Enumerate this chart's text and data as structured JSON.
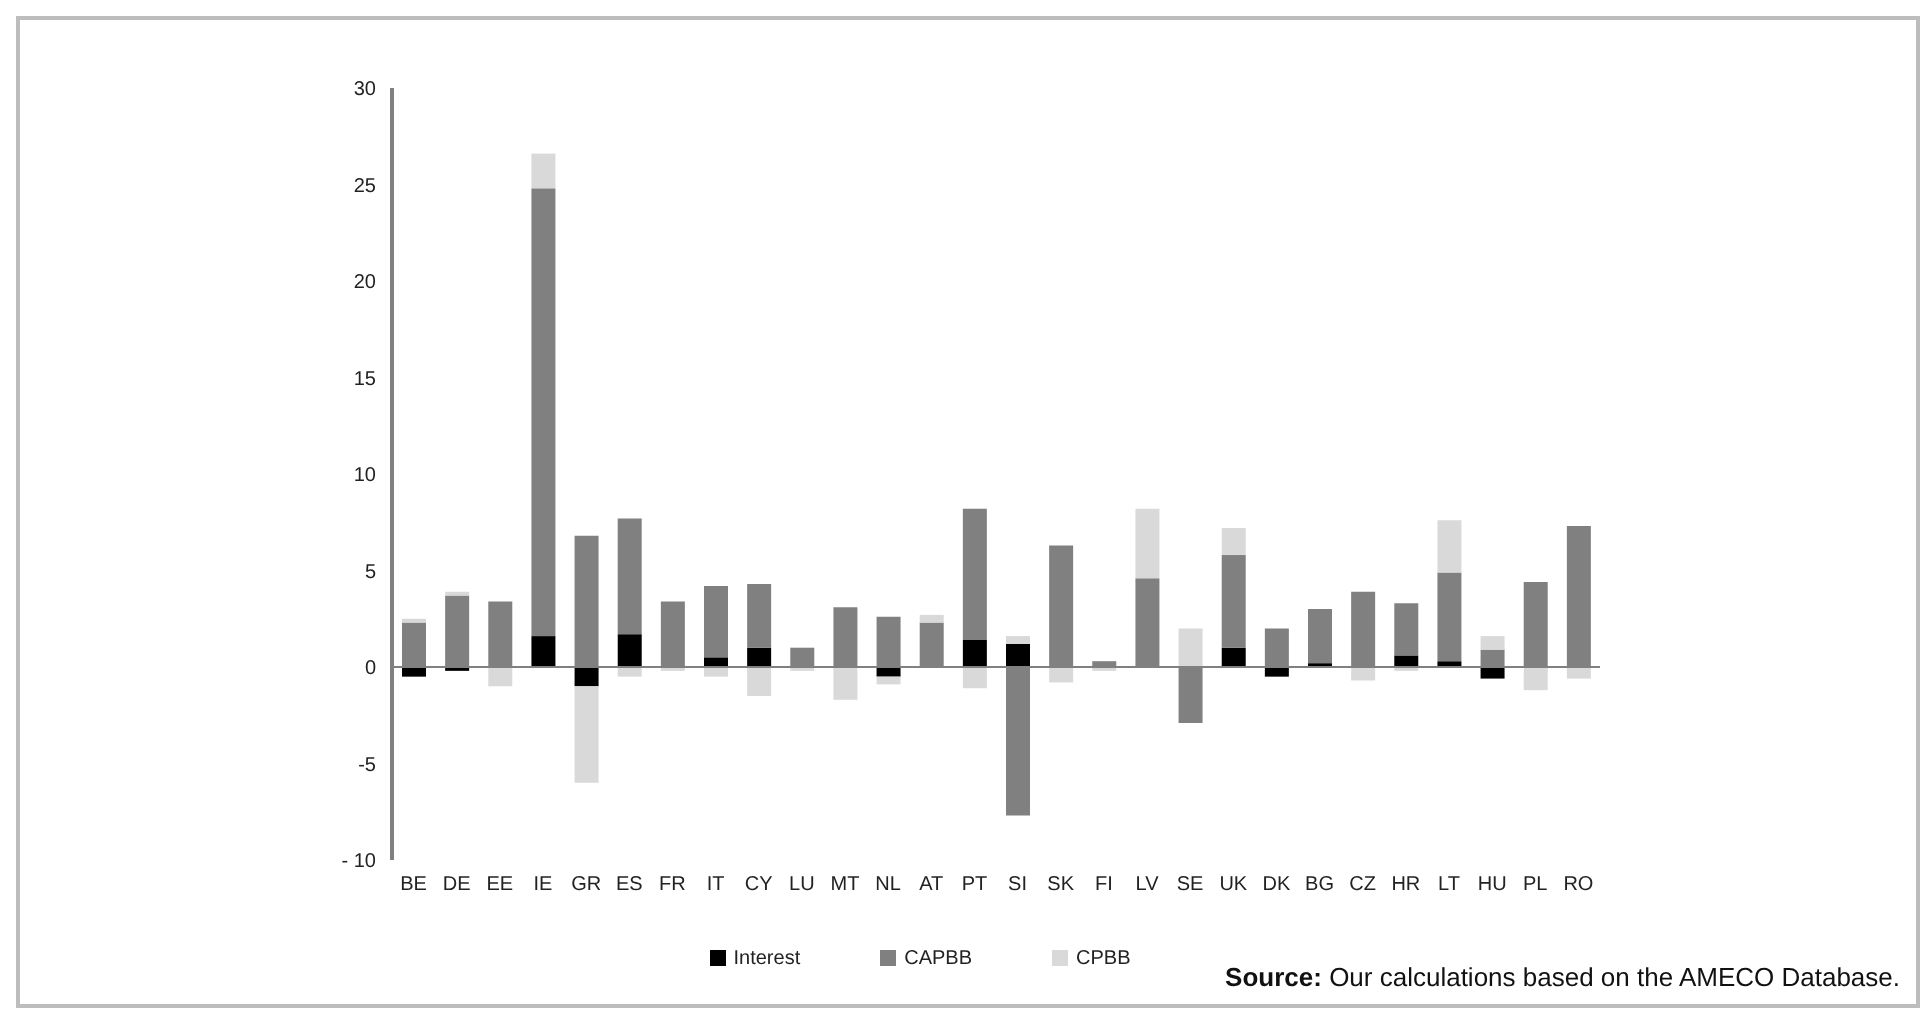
{
  "chart_data": {
    "type": "bar",
    "stacked": true,
    "categories": [
      "BE",
      "DE",
      "EE",
      "IE",
      "GR",
      "ES",
      "FR",
      "IT",
      "CY",
      "LU",
      "MT",
      "NL",
      "AT",
      "PT",
      "SI",
      "SK",
      "FI",
      "LV",
      "SE",
      "UK",
      "DK",
      "BG",
      "CZ",
      "HR",
      "LT",
      "HU",
      "PL",
      "RO"
    ],
    "series": [
      {
        "name": "Interest",
        "color": "#000000",
        "values": [
          -0.5,
          -0.2,
          0,
          1.6,
          -1.0,
          1.7,
          0,
          0.5,
          1.0,
          0,
          0,
          -0.5,
          0,
          1.4,
          1.2,
          0,
          0,
          0,
          0,
          1.0,
          -0.5,
          0.2,
          0,
          0.6,
          0.3,
          -0.6,
          0,
          0
        ]
      },
      {
        "name": "CAPBB",
        "color": "#808080",
        "values": [
          2.3,
          3.7,
          3.4,
          23.2,
          6.8,
          6.0,
          3.4,
          3.7,
          3.3,
          1.0,
          3.1,
          2.6,
          2.3,
          6.8,
          -7.7,
          6.3,
          0.3,
          4.6,
          -2.9,
          4.8,
          2.0,
          2.8,
          3.9,
          2.7,
          4.6,
          0.9,
          4.4,
          7.3
        ]
      },
      {
        "name": "CPBB",
        "color": "#d9d9d9",
        "values": [
          0.2,
          0.2,
          -1.0,
          1.8,
          -5.0,
          -0.5,
          -0.2,
          -0.5,
          -1.5,
          -0.2,
          -1.7,
          -0.4,
          0.4,
          -1.1,
          0.4,
          -0.8,
          -0.2,
          3.6,
          2.0,
          1.4,
          0,
          0,
          -0.7,
          -0.2,
          2.7,
          0.7,
          -1.2,
          -0.6
        ]
      }
    ],
    "ylim": [
      -10,
      30
    ],
    "yticks": [
      {
        "value": -10,
        "label": "- 10"
      },
      -5,
      0,
      5,
      10,
      15,
      20,
      25,
      30
    ],
    "grid": false,
    "legend": "bottom",
    "ref_lines": [
      {
        "axis": "y",
        "value": 0,
        "color": "#808080"
      }
    ],
    "annotations": [
      "Source: Our calculations based on the AMECO Database."
    ]
  }
}
